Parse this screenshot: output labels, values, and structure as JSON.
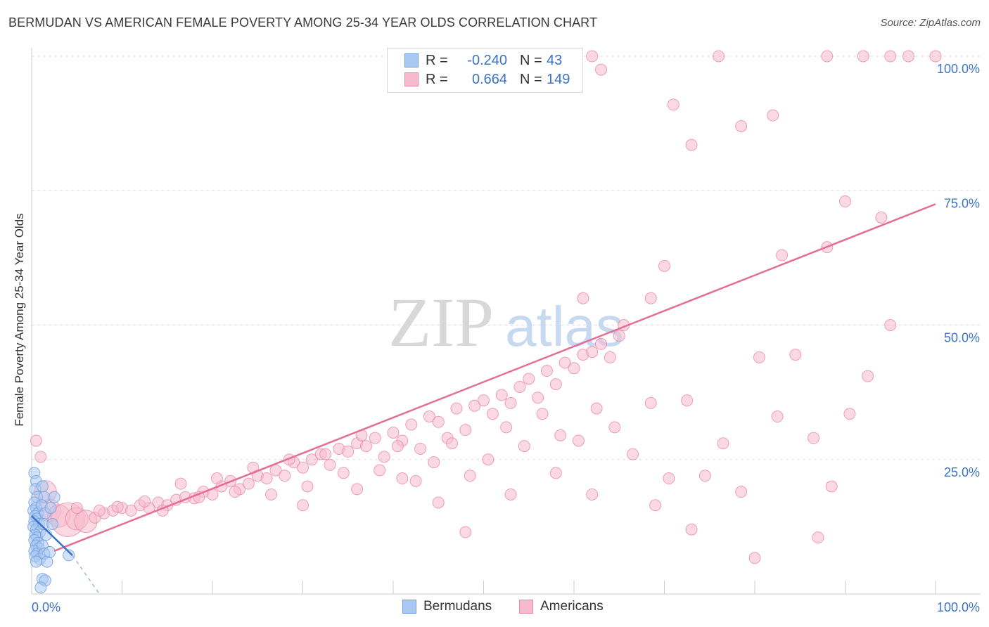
{
  "title": "BERMUDAN VS AMERICAN FEMALE POVERTY AMONG 25-34 YEAR OLDS CORRELATION CHART",
  "source": "Source: ZipAtlas.com",
  "watermark": {
    "zip": "ZIP",
    "atlas": "atlas"
  },
  "legend": {
    "rows": [
      {
        "r_label": "R =",
        "r_value": "-0.240",
        "n_label": "N =",
        "n_value": "43",
        "fill": "#a9c8f2",
        "stroke": "#6f9ddc"
      },
      {
        "r_label": "R =",
        "r_value": "0.664",
        "n_label": "N =",
        "n_value": "149",
        "fill": "#f7b9cc",
        "stroke": "#e98aaa"
      }
    ]
  },
  "bottom_legend": [
    {
      "label": "Bermudans",
      "fill": "#a9c8f2",
      "stroke": "#6f9ddc"
    },
    {
      "label": "Americans",
      "fill": "#f7b9cc",
      "stroke": "#e98aaa"
    }
  ],
  "chart_data": {
    "type": "scatter",
    "title": "BERMUDAN VS AMERICAN FEMALE POVERTY AMONG 25-34 YEAR OLDS CORRELATION CHART",
    "xlabel": "",
    "ylabel": "Female Poverty Among 25-34 Year Olds",
    "xlim": [
      0,
      100
    ],
    "ylim": [
      0,
      100
    ],
    "x_tick_labels": [
      "0.0%",
      "100.0%"
    ],
    "y_tick_labels": [
      "25.0%",
      "50.0%",
      "75.0%",
      "100.0%"
    ],
    "y_tick_values": [
      25,
      50,
      75,
      100
    ],
    "grid": true,
    "legend_position": "top-center",
    "series": [
      {
        "name": "Bermudans",
        "color": "#6f9ddc",
        "fill": "#a9c8f2",
        "line_color": "#3b73c4",
        "trend": {
          "x": [
            0,
            4.5
          ],
          "y": [
            14.5,
            7.2
          ]
        },
        "trend_dashed": {
          "x": [
            4.5,
            7.5
          ],
          "y": [
            7.2,
            0
          ]
        },
        "points": [
          {
            "x": 0.3,
            "y": 22.5
          },
          {
            "x": 0.5,
            "y": 21.0
          },
          {
            "x": 0.4,
            "y": 19.5
          },
          {
            "x": 0.6,
            "y": 18.0
          },
          {
            "x": 0.3,
            "y": 17.0
          },
          {
            "x": 0.5,
            "y": 16.0
          },
          {
            "x": 0.2,
            "y": 15.5
          },
          {
            "x": 0.7,
            "y": 15.0
          },
          {
            "x": 0.4,
            "y": 14.5
          },
          {
            "x": 0.6,
            "y": 14.0
          },
          {
            "x": 0.3,
            "y": 13.5
          },
          {
            "x": 0.8,
            "y": 13.0
          },
          {
            "x": 0.2,
            "y": 12.5
          },
          {
            "x": 0.5,
            "y": 12.0
          },
          {
            "x": 0.9,
            "y": 11.5
          },
          {
            "x": 0.4,
            "y": 11.0
          },
          {
            "x": 0.6,
            "y": 10.5
          },
          {
            "x": 0.3,
            "y": 10.0
          },
          {
            "x": 0.7,
            "y": 9.5
          },
          {
            "x": 0.5,
            "y": 9.0
          },
          {
            "x": 0.8,
            "y": 8.5
          },
          {
            "x": 0.3,
            "y": 8.0
          },
          {
            "x": 0.6,
            "y": 7.5
          },
          {
            "x": 0.4,
            "y": 7.0
          },
          {
            "x": 0.9,
            "y": 6.5
          },
          {
            "x": 0.5,
            "y": 6.0
          },
          {
            "x": 1.2,
            "y": 20.0
          },
          {
            "x": 1.4,
            "y": 18.0
          },
          {
            "x": 1.1,
            "y": 16.5
          },
          {
            "x": 1.5,
            "y": 15.0
          },
          {
            "x": 1.3,
            "y": 13.0
          },
          {
            "x": 1.6,
            "y": 11.0
          },
          {
            "x": 1.2,
            "y": 9.0
          },
          {
            "x": 1.4,
            "y": 7.5
          },
          {
            "x": 1.7,
            "y": 6.0
          },
          {
            "x": 2.3,
            "y": 13.0
          },
          {
            "x": 2.1,
            "y": 16.0
          },
          {
            "x": 2.5,
            "y": 18.0
          },
          {
            "x": 2.0,
            "y": 7.8
          },
          {
            "x": 4.1,
            "y": 7.2
          },
          {
            "x": 1.2,
            "y": 2.8
          },
          {
            "x": 1.5,
            "y": 2.5
          },
          {
            "x": 1.0,
            "y": 1.2
          }
        ]
      },
      {
        "name": "Americans",
        "color": "#e98aaa",
        "fill": "#f7b9cc",
        "line_color": "#e56d97",
        "trend": {
          "x": [
            2.5,
            100
          ],
          "y": [
            8.0,
            72.5
          ]
        },
        "points": [
          {
            "x": 0.5,
            "y": 28.5
          },
          {
            "x": 1.0,
            "y": 25.5
          },
          {
            "x": 1.5,
            "y": 19.0,
            "s": 2
          },
          {
            "x": 2.0,
            "y": 15.5,
            "s": 2
          },
          {
            "x": 3.0,
            "y": 14.5,
            "s": 2
          },
          {
            "x": 4.0,
            "y": 13.8,
            "s": 3
          },
          {
            "x": 5.0,
            "y": 14.0,
            "s": 2
          },
          {
            "x": 6.0,
            "y": 13.5,
            "s": 2
          },
          {
            "x": 7.0,
            "y": 14.2
          },
          {
            "x": 8.0,
            "y": 15.0
          },
          {
            "x": 9.0,
            "y": 15.5
          },
          {
            "x": 10.0,
            "y": 16.0
          },
          {
            "x": 11.0,
            "y": 15.5
          },
          {
            "x": 12.0,
            "y": 16.5
          },
          {
            "x": 13.0,
            "y": 16.0
          },
          {
            "x": 14.0,
            "y": 17.0
          },
          {
            "x": 15.0,
            "y": 16.5
          },
          {
            "x": 16.0,
            "y": 17.5
          },
          {
            "x": 17.0,
            "y": 18.0
          },
          {
            "x": 18.0,
            "y": 17.8
          },
          {
            "x": 19.0,
            "y": 19.0
          },
          {
            "x": 20.0,
            "y": 18.5
          },
          {
            "x": 21.0,
            "y": 20.0
          },
          {
            "x": 22.0,
            "y": 21.0
          },
          {
            "x": 23.0,
            "y": 19.5
          },
          {
            "x": 24.0,
            "y": 20.5
          },
          {
            "x": 25.0,
            "y": 22.0
          },
          {
            "x": 26.0,
            "y": 21.5
          },
          {
            "x": 27.0,
            "y": 23.0
          },
          {
            "x": 28.0,
            "y": 22.0
          },
          {
            "x": 29.0,
            "y": 24.5
          },
          {
            "x": 30.0,
            "y": 23.5
          },
          {
            "x": 31.0,
            "y": 25.0
          },
          {
            "x": 32.0,
            "y": 26.0
          },
          {
            "x": 33.0,
            "y": 24.0
          },
          {
            "x": 34.0,
            "y": 27.0
          },
          {
            "x": 35.0,
            "y": 26.5
          },
          {
            "x": 36.0,
            "y": 28.0
          },
          {
            "x": 37.0,
            "y": 27.5
          },
          {
            "x": 38.0,
            "y": 29.0
          },
          {
            "x": 39.0,
            "y": 25.5
          },
          {
            "x": 40.0,
            "y": 30.0
          },
          {
            "x": 41.0,
            "y": 28.5
          },
          {
            "x": 42.0,
            "y": 31.5
          },
          {
            "x": 43.0,
            "y": 27.0
          },
          {
            "x": 44.0,
            "y": 33.0
          },
          {
            "x": 45.0,
            "y": 32.0
          },
          {
            "x": 46.0,
            "y": 29.0
          },
          {
            "x": 47.0,
            "y": 34.5
          },
          {
            "x": 48.0,
            "y": 30.5
          },
          {
            "x": 49.0,
            "y": 35.0
          },
          {
            "x": 50.0,
            "y": 36.0
          },
          {
            "x": 51.0,
            "y": 33.5
          },
          {
            "x": 52.0,
            "y": 37.0
          },
          {
            "x": 53.0,
            "y": 35.5
          },
          {
            "x": 54.0,
            "y": 38.5
          },
          {
            "x": 55.0,
            "y": 40.0
          },
          {
            "x": 56.0,
            "y": 36.5
          },
          {
            "x": 57.0,
            "y": 41.5
          },
          {
            "x": 58.0,
            "y": 39.0
          },
          {
            "x": 59.0,
            "y": 43.0
          },
          {
            "x": 60.0,
            "y": 42.0
          },
          {
            "x": 61.0,
            "y": 44.5
          },
          {
            "x": 62.0,
            "y": 45.0
          },
          {
            "x": 63.0,
            "y": 46.5
          },
          {
            "x": 64.0,
            "y": 44.0
          },
          {
            "x": 65.0,
            "y": 48.0
          },
          {
            "x": 5.0,
            "y": 16.0
          },
          {
            "x": 7.5,
            "y": 15.5
          },
          {
            "x": 9.5,
            "y": 16.2
          },
          {
            "x": 12.5,
            "y": 17.2
          },
          {
            "x": 14.5,
            "y": 15.5
          },
          {
            "x": 16.5,
            "y": 20.5
          },
          {
            "x": 18.5,
            "y": 18.0
          },
          {
            "x": 20.5,
            "y": 21.5
          },
          {
            "x": 22.5,
            "y": 19.0
          },
          {
            "x": 24.5,
            "y": 23.5
          },
          {
            "x": 26.5,
            "y": 18.5
          },
          {
            "x": 28.5,
            "y": 25.0
          },
          {
            "x": 30.5,
            "y": 20.0
          },
          {
            "x": 32.5,
            "y": 26.0
          },
          {
            "x": 34.5,
            "y": 22.5
          },
          {
            "x": 36.5,
            "y": 29.5
          },
          {
            "x": 38.5,
            "y": 23.0
          },
          {
            "x": 40.5,
            "y": 27.5
          },
          {
            "x": 42.5,
            "y": 21.0
          },
          {
            "x": 44.5,
            "y": 24.5
          },
          {
            "x": 46.5,
            "y": 28.0
          },
          {
            "x": 48.5,
            "y": 22.0
          },
          {
            "x": 50.5,
            "y": 25.0
          },
          {
            "x": 52.5,
            "y": 31.0
          },
          {
            "x": 54.5,
            "y": 27.5
          },
          {
            "x": 56.5,
            "y": 33.5
          },
          {
            "x": 58.5,
            "y": 29.5
          },
          {
            "x": 60.5,
            "y": 28.5
          },
          {
            "x": 62.5,
            "y": 34.5
          },
          {
            "x": 64.5,
            "y": 31.0
          },
          {
            "x": 66.5,
            "y": 26.0
          },
          {
            "x": 68.5,
            "y": 35.5
          },
          {
            "x": 70.5,
            "y": 21.5
          },
          {
            "x": 72.5,
            "y": 36.0
          },
          {
            "x": 74.5,
            "y": 22.0
          },
          {
            "x": 76.5,
            "y": 28.0
          },
          {
            "x": 78.5,
            "y": 19.0
          },
          {
            "x": 80.5,
            "y": 44.0
          },
          {
            "x": 82.5,
            "y": 33.0
          },
          {
            "x": 84.5,
            "y": 44.5
          },
          {
            "x": 86.5,
            "y": 29.0
          },
          {
            "x": 88.5,
            "y": 20.0
          },
          {
            "x": 90.5,
            "y": 33.5
          },
          {
            "x": 92.5,
            "y": 40.5
          },
          {
            "x": 61.0,
            "y": 55.0
          },
          {
            "x": 65.5,
            "y": 50.0
          },
          {
            "x": 68.5,
            "y": 55.0
          },
          {
            "x": 70.0,
            "y": 61.0
          },
          {
            "x": 73.0,
            "y": 83.5
          },
          {
            "x": 71.0,
            "y": 91.0
          },
          {
            "x": 78.5,
            "y": 87.0
          },
          {
            "x": 82.0,
            "y": 89.0
          },
          {
            "x": 83.0,
            "y": 63.0
          },
          {
            "x": 88.0,
            "y": 64.5
          },
          {
            "x": 90.0,
            "y": 73.0
          },
          {
            "x": 94.0,
            "y": 70.0
          },
          {
            "x": 95.0,
            "y": 50.0
          },
          {
            "x": 62.0,
            "y": 100.0
          },
          {
            "x": 63.0,
            "y": 97.5
          },
          {
            "x": 76.0,
            "y": 100.0
          },
          {
            "x": 88.0,
            "y": 100.0
          },
          {
            "x": 92.0,
            "y": 100.0
          },
          {
            "x": 95.0,
            "y": 100.0
          },
          {
            "x": 97.0,
            "y": 100.0
          },
          {
            "x": 100.0,
            "y": 100.0
          },
          {
            "x": 48.0,
            "y": 11.5
          },
          {
            "x": 62.0,
            "y": 18.5
          },
          {
            "x": 69.0,
            "y": 16.5
          },
          {
            "x": 73.0,
            "y": 12.0
          },
          {
            "x": 80.0,
            "y": 6.7
          },
          {
            "x": 87.0,
            "y": 10.5
          },
          {
            "x": 30.0,
            "y": 16.5
          },
          {
            "x": 36.0,
            "y": 19.5
          },
          {
            "x": 41.0,
            "y": 21.5
          },
          {
            "x": 45.0,
            "y": 17.0
          },
          {
            "x": 53.0,
            "y": 18.5
          },
          {
            "x": 58.0,
            "y": 22.5
          }
        ]
      }
    ]
  }
}
